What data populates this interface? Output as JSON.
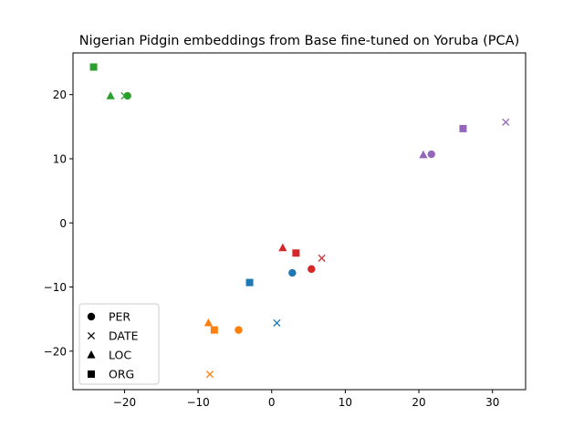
{
  "chart_data": {
    "type": "scatter",
    "title": "Nigerian Pidgin embeddings from Base fine-tuned on Yoruba (PCA)",
    "xlabel": "",
    "ylabel": "",
    "xlim": [
      -27,
      34.5
    ],
    "ylim": [
      -26,
      26.5
    ],
    "xticks": [
      -20,
      -10,
      0,
      10,
      20,
      30
    ],
    "yticks": [
      -20,
      -10,
      0,
      10,
      20
    ],
    "grid": false,
    "legend": {
      "placement": "lower-left",
      "entries": [
        {
          "label": "PER",
          "marker": "circle"
        },
        {
          "label": "DATE",
          "marker": "x"
        },
        {
          "label": "LOC",
          "marker": "triangle"
        },
        {
          "label": "ORG",
          "marker": "square"
        }
      ]
    },
    "points": [
      {
        "group": "green",
        "color": "#2ca02c",
        "marker": "circle",
        "x": -19.6,
        "y": 19.8
      },
      {
        "group": "green",
        "color": "#2ca02c",
        "marker": "x",
        "x": -20.0,
        "y": 19.8
      },
      {
        "group": "green",
        "color": "#2ca02c",
        "marker": "triangle",
        "x": -21.9,
        "y": 19.8
      },
      {
        "group": "green",
        "color": "#2ca02c",
        "marker": "square",
        "x": -24.2,
        "y": 24.3
      },
      {
        "group": "purple",
        "color": "#9467bd",
        "marker": "circle",
        "x": 21.7,
        "y": 10.7
      },
      {
        "group": "purple",
        "color": "#9467bd",
        "marker": "x",
        "x": 31.8,
        "y": 15.7
      },
      {
        "group": "purple",
        "color": "#9467bd",
        "marker": "triangle",
        "x": 20.6,
        "y": 10.6
      },
      {
        "group": "purple",
        "color": "#9467bd",
        "marker": "square",
        "x": 26.0,
        "y": 14.7
      },
      {
        "group": "red",
        "color": "#d62728",
        "marker": "circle",
        "x": 5.4,
        "y": -7.2
      },
      {
        "group": "red",
        "color": "#d62728",
        "marker": "x",
        "x": 6.8,
        "y": -5.5
      },
      {
        "group": "red",
        "color": "#d62728",
        "marker": "triangle",
        "x": 1.5,
        "y": -3.9
      },
      {
        "group": "red",
        "color": "#d62728",
        "marker": "square",
        "x": 3.3,
        "y": -4.7
      },
      {
        "group": "blue",
        "color": "#1f77b4",
        "marker": "circle",
        "x": 2.8,
        "y": -7.8
      },
      {
        "group": "blue",
        "color": "#1f77b4",
        "marker": "x",
        "x": 0.7,
        "y": -15.6
      },
      {
        "group": "blue",
        "color": "#1f77b4",
        "marker": "square",
        "x": -3.0,
        "y": -9.3
      },
      {
        "group": "orange",
        "color": "#ff7f0e",
        "marker": "circle",
        "x": -4.5,
        "y": -16.7
      },
      {
        "group": "orange",
        "color": "#ff7f0e",
        "marker": "x",
        "x": -8.4,
        "y": -23.6
      },
      {
        "group": "orange",
        "color": "#ff7f0e",
        "marker": "triangle",
        "x": -8.6,
        "y": -15.6
      },
      {
        "group": "orange",
        "color": "#ff7f0e",
        "marker": "square",
        "x": -7.8,
        "y": -16.7
      }
    ]
  }
}
